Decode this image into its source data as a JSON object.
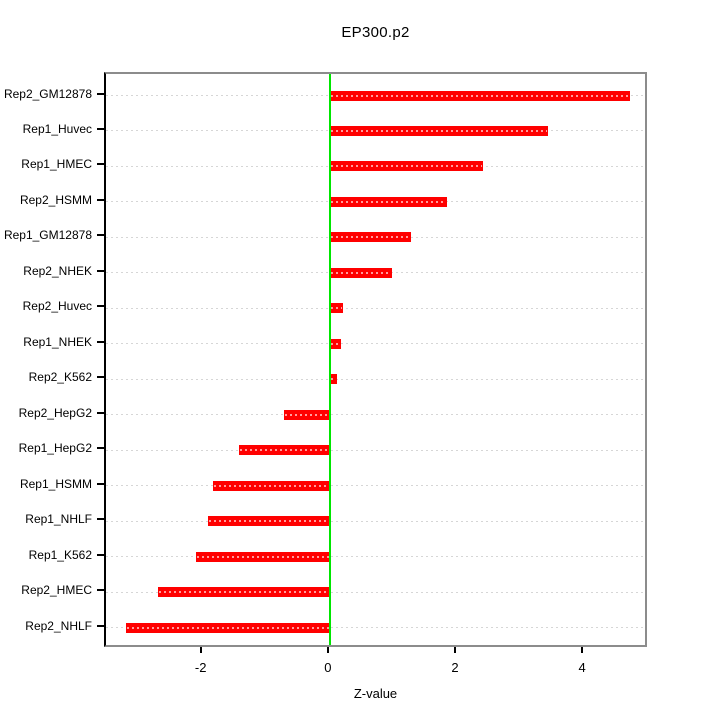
{
  "chart_data": {
    "type": "bar",
    "orientation": "horizontal",
    "title": "EP300.p2",
    "xlabel": "Z-value",
    "ylabel": "",
    "categories": [
      "Rep2_GM12878",
      "Rep1_Huvec",
      "Rep1_HMEC",
      "Rep2_HSMM",
      "Rep1_GM12878",
      "Rep2_NHEK",
      "Rep2_Huvec",
      "Rep1_NHEK",
      "Rep2_K562",
      "Rep2_HepG2",
      "Rep1_HepG2",
      "Rep1_HSMM",
      "Rep1_NHLF",
      "Rep1_K562",
      "Rep2_HMEC",
      "Rep2_NHLF"
    ],
    "values": [
      4.72,
      3.43,
      2.41,
      1.84,
      1.28,
      0.98,
      0.21,
      0.17,
      0.12,
      -0.72,
      -1.43,
      -1.83,
      -1.91,
      -2.1,
      -2.71,
      -3.21
    ],
    "xlim": [
      -3.52,
      5.02
    ],
    "xticks": [
      "-2",
      "0",
      "2",
      "4"
    ],
    "xtick_values": [
      -2,
      0,
      2,
      4
    ],
    "zero_line_value": 0,
    "grid": "dotted-horizontal-per-category",
    "legend": "none",
    "colors": {
      "bar": "#FF0000",
      "bar_grid_overlay": "#FF9C9C",
      "zero_line": "#00E600",
      "gridline": "#D6D6D6",
      "box_border": "#8C8C8C",
      "axis": "#000000",
      "text": "#000000",
      "background": "#FFFFFF"
    }
  }
}
